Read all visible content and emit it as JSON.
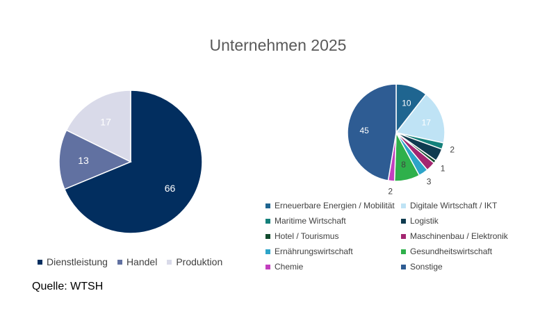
{
  "title": "Unternehmen 2025",
  "source": "Quelle: WTSH",
  "chart_data": [
    {
      "type": "pie",
      "categories": [
        "Dienstleistung",
        "Handel",
        "Produktion"
      ],
      "values": [
        66,
        13,
        17
      ],
      "colors": [
        "#022e5f",
        "#6171a1",
        "#d9dae9"
      ],
      "label_colors": [
        "#ffffff",
        "#ffffff",
        "#ffffff"
      ],
      "legend_position": "bottom"
    },
    {
      "type": "pie",
      "categories": [
        "Erneuerbare Energien / Mobilität",
        "Digitale Wirtschaft / IKT",
        "Maritime Wirtschaft",
        "Logistik",
        "Hotel / Tourismus",
        "Maschinenbau / Elektronik",
        "Ernährungswirtschaft",
        "Gesundheitswirtschaft",
        "Chemie",
        "Sonstige"
      ],
      "values": [
        10,
        17,
        2,
        4,
        1,
        3,
        3,
        8,
        2,
        45
      ],
      "labels": [
        "10",
        "17",
        "2",
        "",
        "1",
        "",
        "3",
        "8",
        "2",
        "45"
      ],
      "colors": [
        "#1f6590",
        "#bfe3f5",
        "#14807a",
        "#0f3b4f",
        "#124b2e",
        "#a32670",
        "#2da4c8",
        "#2fb04b",
        "#c23fbe",
        "#2e5c93"
      ],
      "legend_position": "bottom"
    }
  ]
}
